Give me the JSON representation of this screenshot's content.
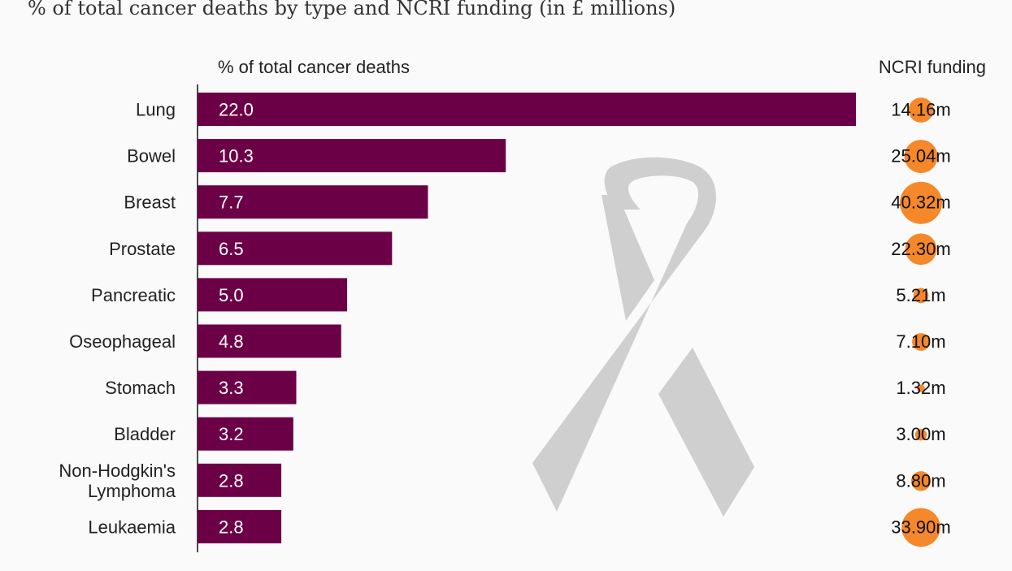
{
  "title": "% of total cancer deaths by type and NCRI funding (in £ millions)",
  "colors": {
    "bar": "#6b0046",
    "bubble": "#f5882a",
    "ribbon": "#cfcfcf",
    "axis": "#111111"
  },
  "chart_data": {
    "type": "bar",
    "orientation": "horizontal",
    "xlabel": "% of total cancer deaths",
    "categories": [
      [
        "Lung"
      ],
      [
        "Bowel"
      ],
      [
        "Breast"
      ],
      [
        "Prostate"
      ],
      [
        "Pancreatic"
      ],
      [
        "Oseophageal"
      ],
      [
        "Stomach"
      ],
      [
        "Bladder"
      ],
      [
        "Non-Hodgkin's",
        "Lymphoma"
      ],
      [
        "Leukaemia"
      ]
    ],
    "values": [
      22.0,
      10.3,
      7.7,
      6.5,
      5.0,
      4.8,
      3.3,
      3.2,
      2.8,
      2.8
    ],
    "value_labels": [
      "22.0",
      "10.3",
      "7.7",
      "6.5",
      "5.0",
      "4.8",
      "3.3",
      "3.2",
      "2.8",
      "2.8"
    ],
    "funding": {
      "label": "NCRI funding",
      "values": [
        14.16,
        25.04,
        40.32,
        22.3,
        5.21,
        7.1,
        1.32,
        3.0,
        8.8,
        33.9
      ],
      "value_labels": [
        "14.16m",
        "25.04m",
        "40.32m",
        "22.30m",
        "5.21m",
        "7.10m",
        "1.32m",
        "3.00m",
        "8.80m",
        "33.90m"
      ]
    }
  }
}
